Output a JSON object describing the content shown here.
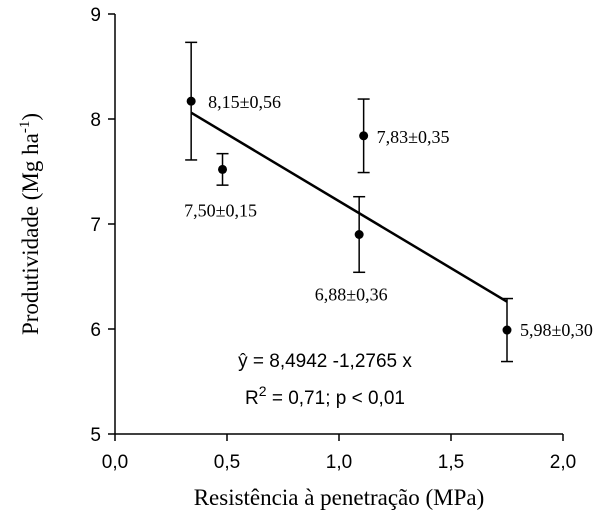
{
  "chart_data": {
    "type": "scatter",
    "title": "",
    "xlabel": "Resistência à penetração (MPa)",
    "ylabel": "Produtividade (Mg ha",
    "ylabel_sup": "-1",
    "ylabel_end": ")",
    "xlim": [
      0.0,
      2.0
    ],
    "ylim": [
      5,
      9
    ],
    "xticks": [
      "0,0",
      "0,5",
      "1,0",
      "1,5",
      "2,0"
    ],
    "xtick_values": [
      0.0,
      0.5,
      1.0,
      1.5,
      2.0
    ],
    "yticks": [
      "5",
      "6",
      "7",
      "8",
      "9"
    ],
    "ytick_values": [
      5,
      6,
      7,
      8,
      9
    ],
    "grid": false,
    "points": [
      {
        "x": 0.34,
        "y": 8.17,
        "err": 0.56,
        "label": "8,15±0,56"
      },
      {
        "x": 0.48,
        "y": 7.52,
        "err": 0.15,
        "label": "7,50±0,15"
      },
      {
        "x": 1.11,
        "y": 7.84,
        "err": 0.35,
        "label": "7,83±0,35"
      },
      {
        "x": 1.09,
        "y": 6.9,
        "err": 0.36,
        "label": "6,88±0,36"
      },
      {
        "x": 1.75,
        "y": 5.99,
        "err": 0.3,
        "label": "5,98±0,30"
      }
    ],
    "regression": {
      "intercept": 8.4942,
      "slope": -1.2765,
      "x_range": [
        0.34,
        1.75
      ]
    },
    "equation_line1": "ŷ = 8,4942 -1,2765 x",
    "equation_line2_a": "R",
    "equation_line2_sup": "2",
    "equation_line2_b": " = 0,71; p < 0,01"
  }
}
